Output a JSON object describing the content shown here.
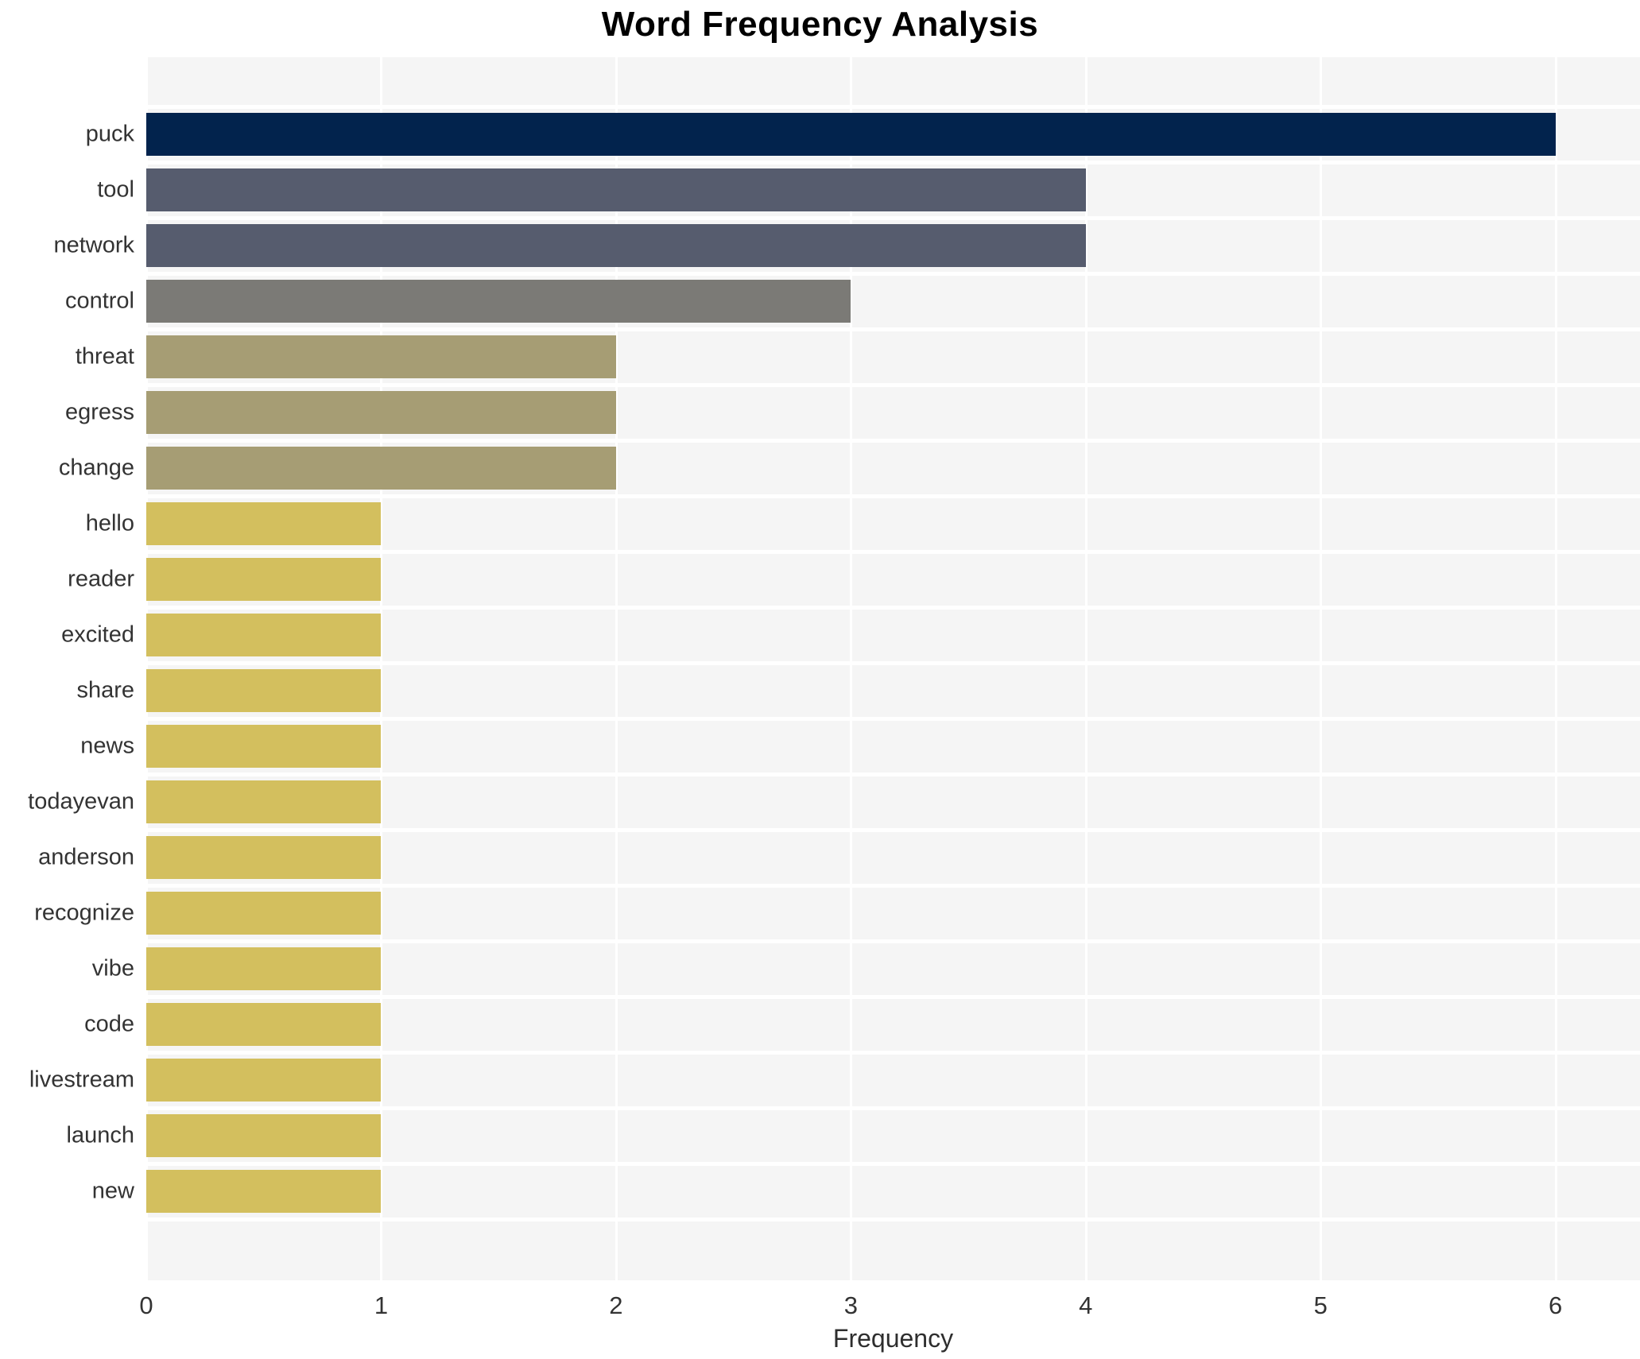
{
  "chart_data": {
    "type": "bar",
    "orientation": "horizontal",
    "title": "Word Frequency Analysis",
    "xlabel": "Frequency",
    "ylabel": "",
    "categories": [
      "puck",
      "tool",
      "network",
      "control",
      "threat",
      "egress",
      "change",
      "hello",
      "reader",
      "excited",
      "share",
      "news",
      "todayevan",
      "anderson",
      "recognize",
      "vibe",
      "code",
      "livestream",
      "launch",
      "new"
    ],
    "values": [
      6,
      4,
      4,
      3,
      2,
      2,
      2,
      1,
      1,
      1,
      1,
      1,
      1,
      1,
      1,
      1,
      1,
      1,
      1,
      1
    ],
    "bar_colors": [
      "#02234d",
      "#565c6e",
      "#565c6e",
      "#7b7a76",
      "#a69d74",
      "#a69d74",
      "#a69d74",
      "#d3bf5e",
      "#d3bf5e",
      "#d3bf5e",
      "#d3bf5e",
      "#d3bf5e",
      "#d3bf5e",
      "#d3bf5e",
      "#d3bf5e",
      "#d3bf5e",
      "#d3bf5e",
      "#d3bf5e",
      "#d3bf5e",
      "#d3bf5e"
    ],
    "xticks": [
      0,
      1,
      2,
      3,
      4,
      5,
      6
    ],
    "xtick_labels": [
      "0",
      "1",
      "2",
      "3",
      "4",
      "5",
      "6"
    ],
    "xlim": [
      0,
      6.36
    ],
    "grid": true,
    "legend": false,
    "plot_bg_color": "#f5f5f5",
    "grid_color": "#ffffff",
    "title_color": "#000000",
    "tick_label_color": "#333333"
  }
}
